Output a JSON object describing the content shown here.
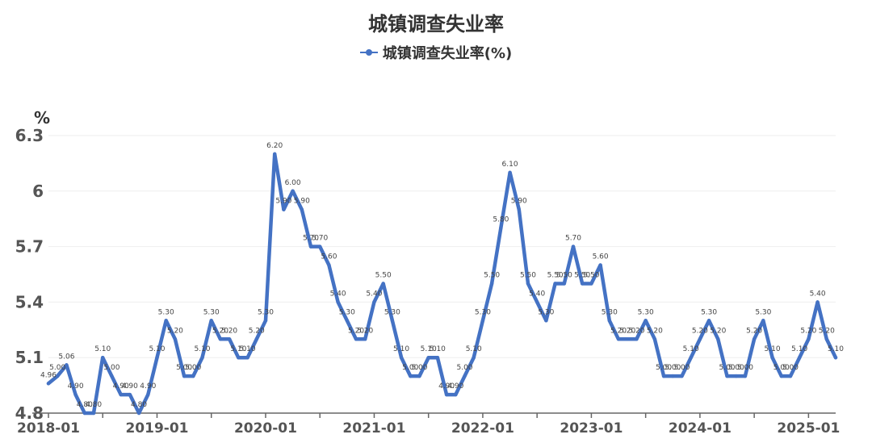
{
  "chart_data": {
    "type": "line",
    "title": "城镇调查失业率",
    "ylabel": "%",
    "ylim": [
      4.8,
      6.3
    ],
    "yticks": [
      "4.8",
      "5.1",
      "5.4",
      "5.7",
      "6",
      "6.3"
    ],
    "xtick_labels": [
      "2018-01",
      "2019-01",
      "2020-01",
      "2021-01",
      "2022-01",
      "2023-01",
      "2024-01",
      "2025-01"
    ],
    "grid": true,
    "legend": "top-center",
    "series": [
      {
        "name": "城镇调查失业率(%)",
        "color": "#4472c4",
        "x": [
          "2018-01",
          "2018-02",
          "2018-03",
          "2018-04",
          "2018-05",
          "2018-06",
          "2018-07",
          "2018-08",
          "2018-09",
          "2018-10",
          "2018-11",
          "2018-12",
          "2019-01",
          "2019-02",
          "2019-03",
          "2019-04",
          "2019-05",
          "2019-06",
          "2019-07",
          "2019-08",
          "2019-09",
          "2019-10",
          "2019-11",
          "2019-12",
          "2020-01",
          "2020-02",
          "2020-03",
          "2020-04",
          "2020-05",
          "2020-06",
          "2020-07",
          "2020-08",
          "2020-09",
          "2020-10",
          "2020-11",
          "2020-12",
          "2021-01",
          "2021-02",
          "2021-03",
          "2021-04",
          "2021-05",
          "2021-06",
          "2021-07",
          "2021-08",
          "2021-09",
          "2021-10",
          "2021-11",
          "2021-12",
          "2022-01",
          "2022-02",
          "2022-03",
          "2022-04",
          "2022-05",
          "2022-06",
          "2022-07",
          "2022-08",
          "2022-09",
          "2022-10",
          "2022-11",
          "2022-12",
          "2023-01",
          "2023-02",
          "2023-03",
          "2023-04",
          "2023-05",
          "2023-06",
          "2023-07",
          "2023-08",
          "2023-09",
          "2023-10",
          "2023-11",
          "2023-12",
          "2024-01",
          "2024-02",
          "2024-03",
          "2024-04",
          "2024-05",
          "2024-06",
          "2024-07",
          "2024-08",
          "2024-09",
          "2024-10",
          "2024-11",
          "2024-12",
          "2025-01",
          "2025-02",
          "2025-03",
          "2025-04"
        ],
        "values": [
          4.96,
          5.0,
          5.06,
          4.9,
          4.8,
          4.8,
          5.1,
          5.0,
          4.9,
          4.9,
          4.8,
          4.9,
          5.1,
          5.3,
          5.2,
          5.0,
          5.0,
          5.1,
          5.3,
          5.2,
          5.2,
          5.1,
          5.1,
          5.2,
          5.3,
          6.2,
          5.9,
          6.0,
          5.9,
          5.7,
          5.7,
          5.6,
          5.4,
          5.3,
          5.2,
          5.2,
          5.4,
          5.5,
          5.3,
          5.1,
          5.0,
          5.0,
          5.1,
          5.1,
          4.9,
          4.9,
          5.0,
          5.1,
          5.3,
          5.5,
          5.8,
          6.1,
          5.9,
          5.5,
          5.4,
          5.3,
          5.5,
          5.5,
          5.7,
          5.5,
          5.5,
          5.6,
          5.3,
          5.2,
          5.2,
          5.2,
          5.3,
          5.2,
          5.0,
          5.0,
          5.0,
          5.1,
          5.2,
          5.3,
          5.2,
          5.0,
          5.0,
          5.0,
          5.2,
          5.3,
          5.1,
          5.0,
          5.0,
          5.1,
          5.2,
          5.4,
          5.2,
          5.1
        ]
      }
    ]
  }
}
